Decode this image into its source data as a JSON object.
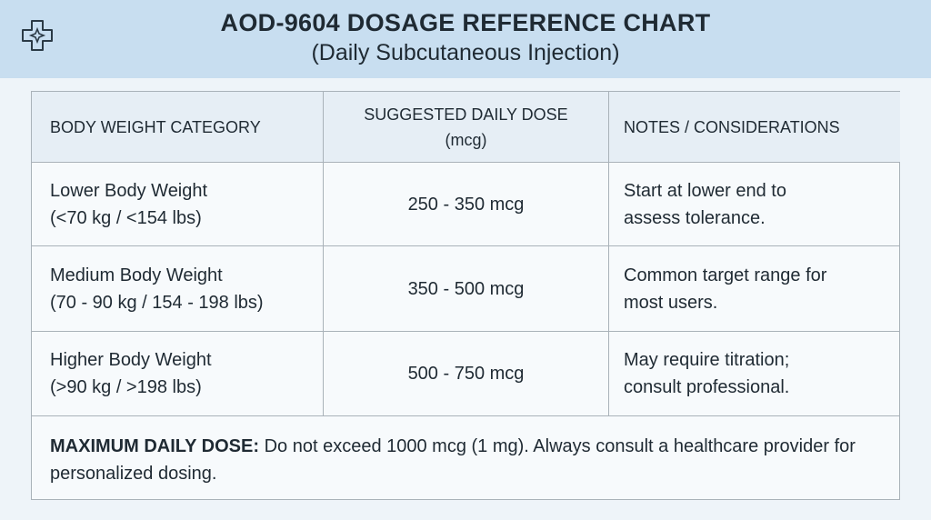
{
  "header": {
    "title": "AOD-9604 DOSAGE REFERENCE CHART",
    "subtitle": "(Daily Subcutaneous Injection)"
  },
  "table": {
    "columns": [
      [
        "BODY WEIGHT CATEGORY"
      ],
      [
        "SUGGESTED DAILY DOSE",
        "(mcg)"
      ],
      [
        "NOTES / CONSIDERATIONS"
      ]
    ],
    "rows": [
      [
        [
          "Lower Body Weight",
          "(<70 kg / <154 lbs)"
        ],
        [
          "250 - 350 mcg"
        ],
        [
          "Start at lower end to",
          "assess tolerance."
        ]
      ],
      [
        [
          "Medium Body Weight",
          "(70 - 90 kg / 154 - 198 lbs)"
        ],
        [
          "350 - 500 mcg"
        ],
        [
          "Common target range for",
          "most users."
        ]
      ],
      [
        [
          "Higher Body Weight",
          "(>90 kg / >198 lbs)"
        ],
        [
          "500 - 750 mcg"
        ],
        [
          "May require titration;",
          "consult professional."
        ]
      ]
    ]
  },
  "footer": {
    "label": "MAXIMUM DAILY DOSE:",
    "text": "Do not exceed 1000 mcg (1 mg). Always consult a healthcare provider for personalized dosing."
  }
}
